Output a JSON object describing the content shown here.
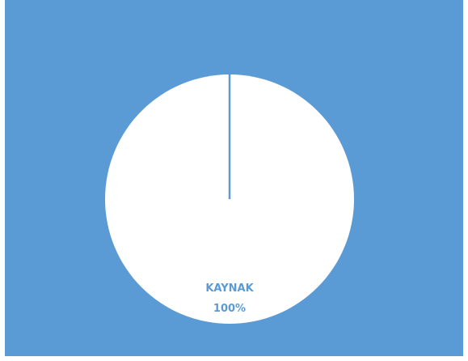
{
  "colors": {
    "background": "#5b9bd5",
    "slice_fill": "#ffffff",
    "slice_border": "#5b9bd5",
    "label_color": "#5b9bd5"
  },
  "chart_data": {
    "type": "pie",
    "title": "",
    "legend": "none",
    "slices": [
      {
        "label": "KAYNAK",
        "value": 100,
        "percent_label": "100%"
      }
    ]
  }
}
